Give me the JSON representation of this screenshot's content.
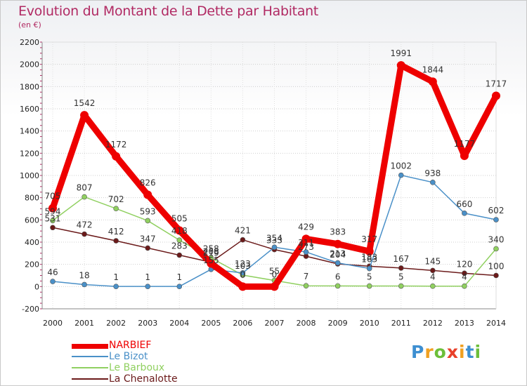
{
  "header": {
    "title": "Evolution du Montant de la Dette par Habitant",
    "subtitle": "(en €)"
  },
  "brand": {
    "text": "Proxiti",
    "letters": [
      {
        "ch": "P",
        "color": "#3d8fd1"
      },
      {
        "ch": "r",
        "color": "#f0a020"
      },
      {
        "ch": "o",
        "color": "#6cbf3a"
      },
      {
        "ch": "x",
        "color": "#e8402a"
      },
      {
        "ch": "i",
        "color": "#f0a020"
      },
      {
        "ch": "t",
        "color": "#3d8fd1"
      },
      {
        "ch": "i",
        "color": "#6cbf3a"
      }
    ]
  },
  "chart_data": {
    "type": "line",
    "title": "Evolution du Montant de la Dette par Habitant",
    "subtitle": "(en €)",
    "x": [
      "2000",
      "2001",
      "2002",
      "2003",
      "2004",
      "2005",
      "2006",
      "2007",
      "2008",
      "2009",
      "2010",
      "2011",
      "2012",
      "2013",
      "2014"
    ],
    "ylim": [
      -200,
      2200
    ],
    "yticks": [
      -200,
      0,
      200,
      400,
      600,
      800,
      1000,
      1200,
      1400,
      1600,
      1800,
      2000,
      2200
    ],
    "grid": true,
    "legend_position": "bottom-left",
    "series": [
      {
        "name": "NARBIEF",
        "color": "#ee0000",
        "values": [
          705,
          1542,
          1172,
          826,
          505,
          208,
          0,
          0,
          429,
          383,
          317,
          1991,
          1844,
          1177,
          1717
        ],
        "labels": [
          "705",
          "1542",
          "1172",
          "826",
          "505",
          "208",
          "0",
          "0",
          "429",
          "383",
          "317",
          "1991",
          "1844",
          "1177",
          "1717"
        ]
      },
      {
        "name": "Le Bizot",
        "color": "#4a90c8",
        "values": [
          46,
          18,
          1,
          1,
          1,
          155,
          123,
          354,
          311,
          213,
          163,
          1002,
          938,
          660,
          602
        ],
        "labels": [
          "46",
          "18",
          "1",
          "1",
          "1",
          "155",
          "123",
          "354",
          "311",
          "213",
          "163",
          "1002",
          "938",
          "660",
          "602"
        ]
      },
      {
        "name": "Le Barboux",
        "color": "#90d060",
        "values": [
          594,
          807,
          702,
          593,
          418,
          258,
          103,
          55,
          7,
          6,
          5,
          5,
          4,
          4,
          340
        ],
        "labels": [
          "594",
          "807",
          "702",
          "593",
          "418",
          "258",
          "103",
          "55",
          "7",
          "6",
          "5",
          "5",
          "4",
          "4",
          "340"
        ]
      },
      {
        "name": "La Chenalotte",
        "color": "#6b1a1a",
        "values": [
          531,
          472,
          412,
          347,
          283,
          219,
          421,
          333,
          273,
          204,
          183,
          167,
          145,
          120,
          100
        ],
        "labels": [
          "531",
          "472",
          "412",
          "347",
          "283",
          "219",
          "421",
          "333",
          "273",
          "204",
          "183",
          "167",
          "145",
          "120",
          "100"
        ]
      }
    ]
  }
}
